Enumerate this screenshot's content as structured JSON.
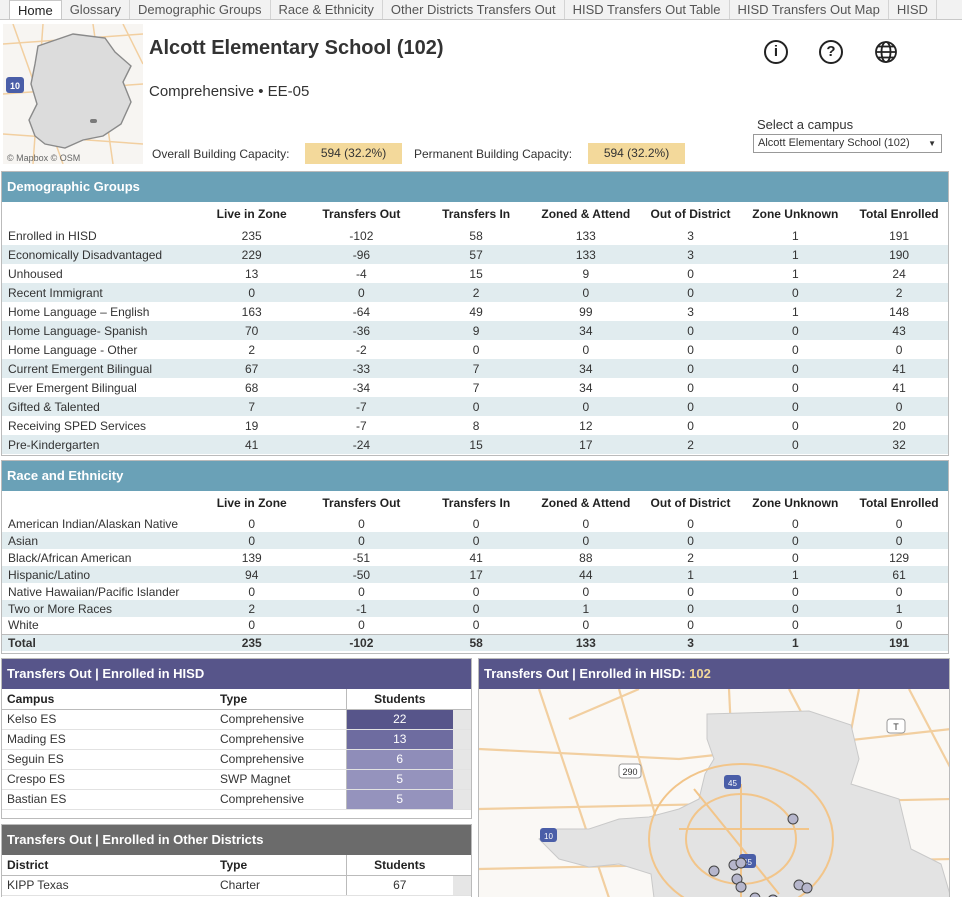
{
  "tabs": [
    "Home",
    "Glossary",
    "Demographic Groups",
    "Race & Ethnicity",
    "Other Districts Transfers Out",
    "HISD Transfers Out Table",
    "HISD Transfers Out Map",
    "HISD"
  ],
  "header": {
    "title": "Alcott Elementary School (102)",
    "subtitle": "Comprehensive • EE-05",
    "map_credit": "© Mapbox  © OSM",
    "overall_capacity_label": "Overall Building Capacity:",
    "overall_capacity_value": "594 (32.2%)",
    "permanent_capacity_label": "Permanent Building Capacity:",
    "permanent_capacity_value": "594 (32.2%)",
    "select_label": "Select a campus",
    "select_value": "Alcott Elementary School (102)",
    "icons": [
      "info-icon",
      "help-icon",
      "globe-icon"
    ]
  },
  "colors": {
    "teal": "#6aa1b7",
    "purple": "#57558a",
    "highlight": "#f3d99b",
    "dark_gray": "#6b6b6b"
  },
  "demographic": {
    "title": "Demographic Groups",
    "columns": [
      "",
      "Live in Zone",
      "Transfers Out",
      "Transfers In",
      "Zoned & Attend",
      "Out of District",
      "Zone Unknown",
      "Total Enrolled"
    ],
    "rows": [
      [
        "Enrolled in HISD",
        "235",
        "-102",
        "58",
        "133",
        "3",
        "1",
        "191"
      ],
      [
        "Economically Disadvantaged",
        "229",
        "-96",
        "57",
        "133",
        "3",
        "1",
        "190"
      ],
      [
        "Unhoused",
        "13",
        "-4",
        "15",
        "9",
        "0",
        "1",
        "24"
      ],
      [
        "Recent Immigrant",
        "0",
        "0",
        "2",
        "0",
        "0",
        "0",
        "2"
      ],
      [
        "Home Language – English",
        "163",
        "-64",
        "49",
        "99",
        "3",
        "1",
        "148"
      ],
      [
        "Home Language- Spanish",
        "70",
        "-36",
        "9",
        "34",
        "0",
        "0",
        "43"
      ],
      [
        "Home Language - Other",
        "2",
        "-2",
        "0",
        "0",
        "0",
        "0",
        "0"
      ],
      [
        "Current Emergent Bilingual",
        "67",
        "-33",
        "7",
        "34",
        "0",
        "0",
        "41"
      ],
      [
        "Ever Emergent Bilingual",
        "68",
        "-34",
        "7",
        "34",
        "0",
        "0",
        "41"
      ],
      [
        "Gifted & Talented",
        "7",
        "-7",
        "0",
        "0",
        "0",
        "0",
        "0"
      ],
      [
        "Receiving SPED Services",
        "19",
        "-7",
        "8",
        "12",
        "0",
        "0",
        "20"
      ],
      [
        "Pre-Kindergarten",
        "41",
        "-24",
        "15",
        "17",
        "2",
        "0",
        "32"
      ]
    ]
  },
  "race": {
    "title": "Race and Ethnicity",
    "columns": [
      "",
      "Live in Zone",
      "Transfers Out",
      "Transfers In",
      "Zoned & Attend",
      "Out of District",
      "Zone Unknown",
      "Total Enrolled"
    ],
    "rows": [
      [
        "American Indian/Alaskan Native",
        "0",
        "0",
        "0",
        "0",
        "0",
        "0",
        "0"
      ],
      [
        "Asian",
        "0",
        "0",
        "0",
        "0",
        "0",
        "0",
        "0"
      ],
      [
        "Black/African American",
        "139",
        "-51",
        "41",
        "88",
        "2",
        "0",
        "129"
      ],
      [
        "Hispanic/Latino",
        "94",
        "-50",
        "17",
        "44",
        "1",
        "1",
        "61"
      ],
      [
        "Native Hawaiian/Pacific Islander",
        "0",
        "0",
        "0",
        "0",
        "0",
        "0",
        "0"
      ],
      [
        "Two or More Races",
        "2",
        "-1",
        "0",
        "1",
        "0",
        "0",
        "1"
      ],
      [
        "White",
        "0",
        "0",
        "0",
        "0",
        "0",
        "0",
        "0"
      ]
    ],
    "total": [
      "Total",
      "235",
      "-102",
      "58",
      "133",
      "3",
      "1",
      "191"
    ]
  },
  "transfers_hisd": {
    "title": "Transfers Out | Enrolled in HISD",
    "columns": [
      "Campus",
      "Type",
      "Students"
    ],
    "rows": [
      {
        "campus": "Kelso ES",
        "type": "Comprehensive",
        "students": "22",
        "color": "#57558a"
      },
      {
        "campus": "Mading ES",
        "type": "Comprehensive",
        "students": "13",
        "color": "#6e6ca0"
      },
      {
        "campus": "Seguin ES",
        "type": "Comprehensive",
        "students": "6",
        "color": "#8f8db9"
      },
      {
        "campus": "Crespo ES",
        "type": "SWP Magnet",
        "students": "5",
        "color": "#9593bd"
      },
      {
        "campus": "Bastian ES",
        "type": "Comprehensive",
        "students": "5",
        "color": "#9593bd"
      }
    ]
  },
  "transfers_map": {
    "title_prefix": "Transfers Out | Enrolled in HISD: ",
    "title_value": "102",
    "shields": [
      "290",
      "45",
      "10",
      "45",
      "T"
    ]
  },
  "transfers_other": {
    "title": "Transfers Out | Enrolled in Other Districts",
    "columns": [
      "District",
      "Type",
      "Students"
    ],
    "rows": [
      {
        "district": "KIPP Texas",
        "type": "Charter",
        "students": "67"
      }
    ]
  }
}
